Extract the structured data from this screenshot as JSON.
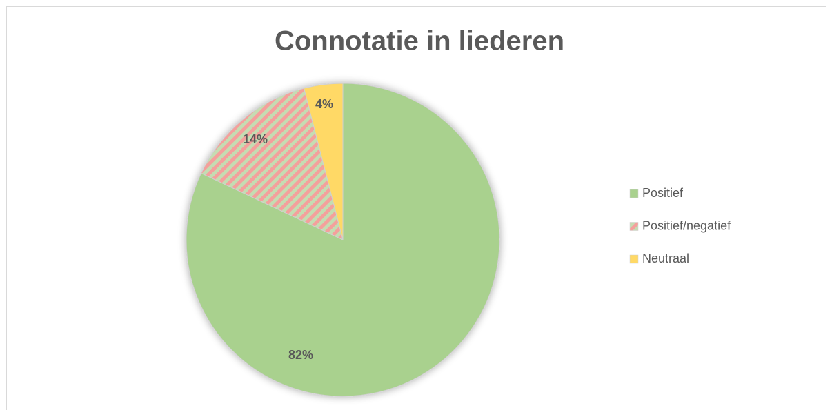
{
  "chart_data": {
    "type": "pie",
    "title": "Connotatie in liederen",
    "categories": [
      "Positief",
      "Positief/negatief",
      "Neutraal"
    ],
    "values": [
      82,
      14,
      4
    ],
    "value_labels": [
      "82%",
      "14%",
      "4%"
    ],
    "colors": [
      "#a9d18e",
      "#f4a09c",
      "#ffd966"
    ],
    "legend": "right"
  }
}
